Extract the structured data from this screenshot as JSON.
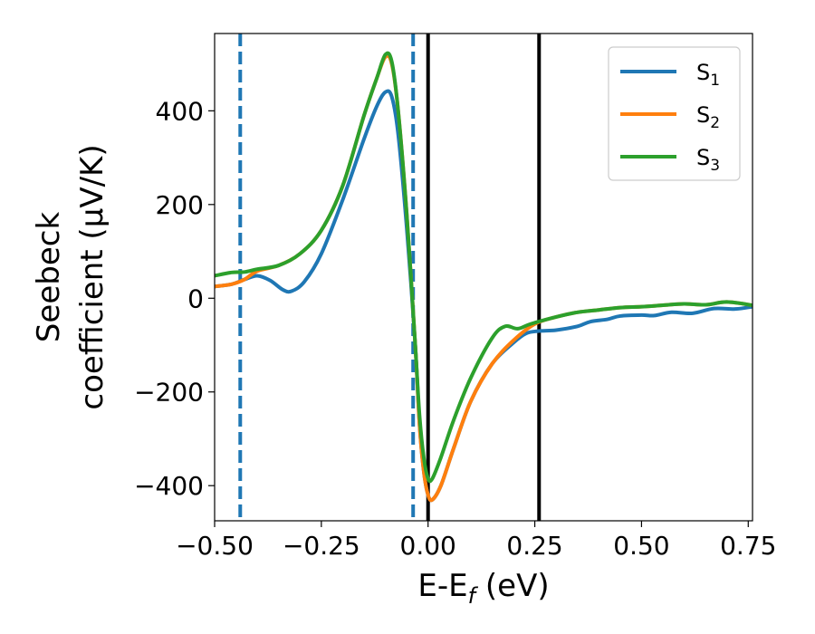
{
  "chart_data": {
    "type": "line",
    "xlabel": "E-E_f (eV)",
    "xlabel_parts": {
      "main": "E-E",
      "sub": "f",
      "unit": " (eV)"
    },
    "ylabel_line1": "Seebeck",
    "ylabel_line2": "coefficient  (μV/K)",
    "xlim": [
      -0.5,
      0.76
    ],
    "ylim": [
      -475,
      565
    ],
    "xticks": [
      -0.5,
      -0.25,
      0.0,
      0.25,
      0.5,
      0.75
    ],
    "xtick_labels": [
      "−0.50",
      "−0.25",
      "0.00",
      "0.25",
      "0.50",
      "0.75"
    ],
    "yticks": [
      -400,
      -200,
      0,
      200,
      400
    ],
    "ytick_labels": [
      "−400",
      "−200",
      "0",
      "200",
      "400"
    ],
    "grid": false,
    "legend_position": "top-right",
    "vlines": [
      {
        "x": -0.44,
        "style": "dashed",
        "color": "#1f77b4"
      },
      {
        "x": -0.035,
        "style": "dashed",
        "color": "#1f77b4"
      },
      {
        "x": 0.0,
        "style": "solid",
        "color": "#000000"
      },
      {
        "x": 0.26,
        "style": "solid",
        "color": "#000000"
      }
    ],
    "series": [
      {
        "name": "S1",
        "label_main": "S",
        "label_sub": "1",
        "color": "#1f77b4",
        "points": [
          [
            -0.5,
            25
          ],
          [
            -0.46,
            30
          ],
          [
            -0.43,
            40
          ],
          [
            -0.4,
            48
          ],
          [
            -0.37,
            38
          ],
          [
            -0.34,
            18
          ],
          [
            -0.32,
            15
          ],
          [
            -0.29,
            35
          ],
          [
            -0.25,
            95
          ],
          [
            -0.2,
            210
          ],
          [
            -0.15,
            340
          ],
          [
            -0.12,
            410
          ],
          [
            -0.1,
            440
          ],
          [
            -0.085,
            430
          ],
          [
            -0.07,
            350
          ],
          [
            -0.05,
            150
          ],
          [
            -0.03,
            -100
          ],
          [
            -0.02,
            -270
          ],
          [
            -0.01,
            -370
          ],
          [
            0.0,
            -420
          ],
          [
            0.01,
            -430
          ],
          [
            0.03,
            -400
          ],
          [
            0.06,
            -320
          ],
          [
            0.1,
            -220
          ],
          [
            0.15,
            -140
          ],
          [
            0.2,
            -95
          ],
          [
            0.23,
            -75
          ],
          [
            0.26,
            -70
          ],
          [
            0.3,
            -68
          ],
          [
            0.35,
            -60
          ],
          [
            0.38,
            -50
          ],
          [
            0.42,
            -45
          ],
          [
            0.45,
            -38
          ],
          [
            0.5,
            -36
          ],
          [
            0.53,
            -37
          ],
          [
            0.57,
            -30
          ],
          [
            0.62,
            -32
          ],
          [
            0.67,
            -22
          ],
          [
            0.72,
            -23
          ],
          [
            0.76,
            -18
          ]
        ]
      },
      {
        "name": "S2",
        "label_main": "S",
        "label_sub": "2",
        "color": "#ff7f0e",
        "points": [
          [
            -0.5,
            25
          ],
          [
            -0.46,
            30
          ],
          [
            -0.43,
            40
          ],
          [
            -0.4,
            58
          ],
          [
            -0.35,
            70
          ],
          [
            -0.3,
            95
          ],
          [
            -0.25,
            145
          ],
          [
            -0.2,
            240
          ],
          [
            -0.15,
            390
          ],
          [
            -0.12,
            470
          ],
          [
            -0.1,
            515
          ],
          [
            -0.085,
            500
          ],
          [
            -0.07,
            400
          ],
          [
            -0.05,
            180
          ],
          [
            -0.03,
            -100
          ],
          [
            -0.02,
            -270
          ],
          [
            -0.01,
            -370
          ],
          [
            0.0,
            -420
          ],
          [
            0.01,
            -430
          ],
          [
            0.03,
            -400
          ],
          [
            0.06,
            -320
          ],
          [
            0.1,
            -220
          ],
          [
            0.15,
            -140
          ],
          [
            0.2,
            -90
          ],
          [
            0.25,
            -55
          ],
          [
            0.3,
            -40
          ],
          [
            0.35,
            -30
          ],
          [
            0.4,
            -25
          ],
          [
            0.45,
            -20
          ],
          [
            0.5,
            -18
          ],
          [
            0.55,
            -15
          ],
          [
            0.6,
            -12
          ],
          [
            0.65,
            -14
          ],
          [
            0.7,
            -8
          ],
          [
            0.76,
            -15
          ]
        ]
      },
      {
        "name": "S3",
        "label_main": "S",
        "label_sub": "3",
        "color": "#2ca02c",
        "points": [
          [
            -0.5,
            48
          ],
          [
            -0.46,
            55
          ],
          [
            -0.43,
            56
          ],
          [
            -0.4,
            62
          ],
          [
            -0.35,
            70
          ],
          [
            -0.3,
            95
          ],
          [
            -0.25,
            145
          ],
          [
            -0.2,
            240
          ],
          [
            -0.15,
            390
          ],
          [
            -0.12,
            470
          ],
          [
            -0.1,
            520
          ],
          [
            -0.085,
            505
          ],
          [
            -0.07,
            400
          ],
          [
            -0.05,
            180
          ],
          [
            -0.03,
            -100
          ],
          [
            -0.02,
            -250
          ],
          [
            -0.01,
            -340
          ],
          [
            0.0,
            -385
          ],
          [
            0.01,
            -385
          ],
          [
            0.03,
            -340
          ],
          [
            0.06,
            -260
          ],
          [
            0.1,
            -170
          ],
          [
            0.15,
            -85
          ],
          [
            0.18,
            -60
          ],
          [
            0.21,
            -65
          ],
          [
            0.24,
            -55
          ],
          [
            0.3,
            -40
          ],
          [
            0.35,
            -30
          ],
          [
            0.4,
            -25
          ],
          [
            0.45,
            -20
          ],
          [
            0.5,
            -18
          ],
          [
            0.55,
            -15
          ],
          [
            0.6,
            -12
          ],
          [
            0.65,
            -14
          ],
          [
            0.7,
            -8
          ],
          [
            0.76,
            -15
          ]
        ]
      }
    ]
  }
}
